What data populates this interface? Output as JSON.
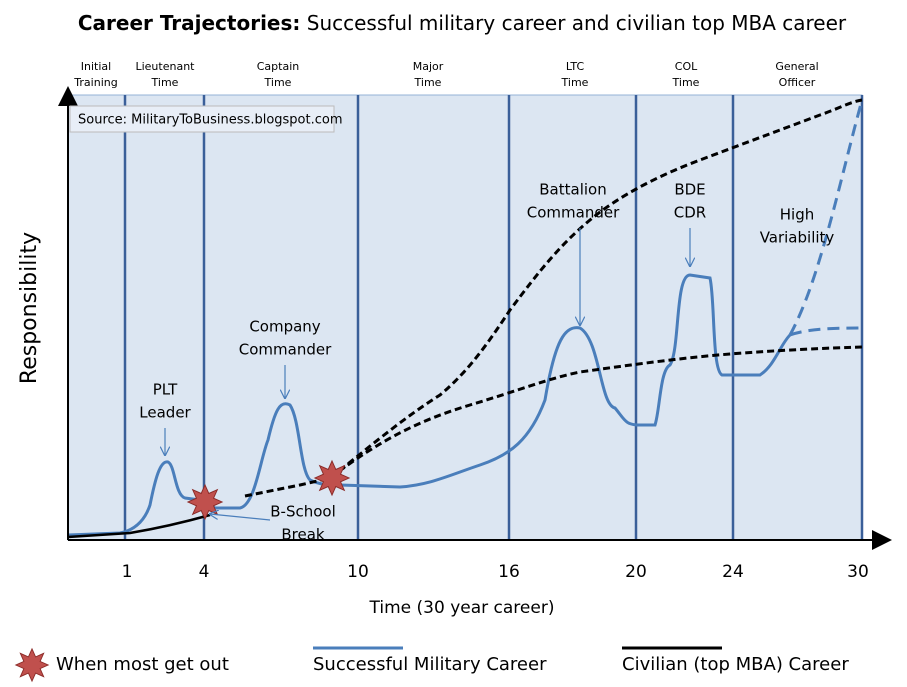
{
  "title": {
    "bold": "Career Trajectories:",
    "rest": "Successful military career and civilian top MBA career"
  },
  "phases": [
    [
      "Initial",
      "Training"
    ],
    [
      "Lieutenant",
      "Time"
    ],
    [
      "Captain",
      "Time"
    ],
    [
      "Major",
      "Time"
    ],
    [
      "LTC",
      "Time"
    ],
    [
      "COL",
      "Time"
    ],
    [
      "General",
      "Officer"
    ]
  ],
  "source": "Source: MilitaryToBusiness.blogspot.com",
  "annotations": [
    [
      "PLT",
      "Leader"
    ],
    [
      "Company",
      "Commander"
    ],
    [
      "Battalion",
      "Commander"
    ],
    [
      "BDE",
      "CDR"
    ],
    [
      "High",
      "Variability"
    ],
    [
      "B-School",
      "Break"
    ]
  ],
  "xticks": [
    1,
    4,
    10,
    16,
    20,
    24,
    30
  ],
  "x_label": "Time (30 year career)",
  "y_label": "Responsibility",
  "legend": [
    "When most get out",
    "Successful Military Career",
    "Civilian (top MBA) Career"
  ]
}
